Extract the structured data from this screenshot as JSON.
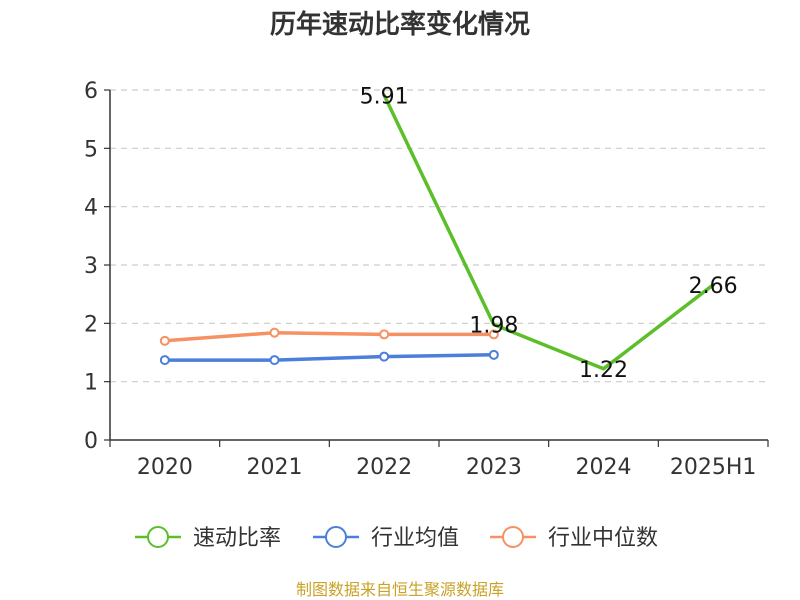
{
  "chart_data": {
    "type": "line",
    "title": "历年速动比率变化情况",
    "categories": [
      "2020",
      "2021",
      "2022",
      "2023",
      "2024",
      "2025H1"
    ],
    "ylim": [
      0,
      6
    ],
    "yticks": [
      "0",
      "1",
      "2",
      "3",
      "4",
      "5",
      "6"
    ],
    "grid": true,
    "legend_position": "bottom",
    "series": [
      {
        "name": "速动比率",
        "color": "#5cbf2a",
        "values": [
          null,
          null,
          5.91,
          1.98,
          1.22,
          2.66
        ],
        "labels": [
          "",
          "",
          "5.91",
          "1.98",
          "1.22",
          "2.66"
        ]
      },
      {
        "name": "行业均值",
        "color": "#4a7fdb",
        "values": [
          1.37,
          1.37,
          1.43,
          1.46,
          null,
          null
        ]
      },
      {
        "name": "行业中位数",
        "color": "#f59163",
        "values": [
          1.7,
          1.84,
          1.81,
          1.81,
          null,
          null
        ]
      }
    ]
  },
  "footer": {
    "source": "制图数据来自恒生聚源数据库"
  }
}
